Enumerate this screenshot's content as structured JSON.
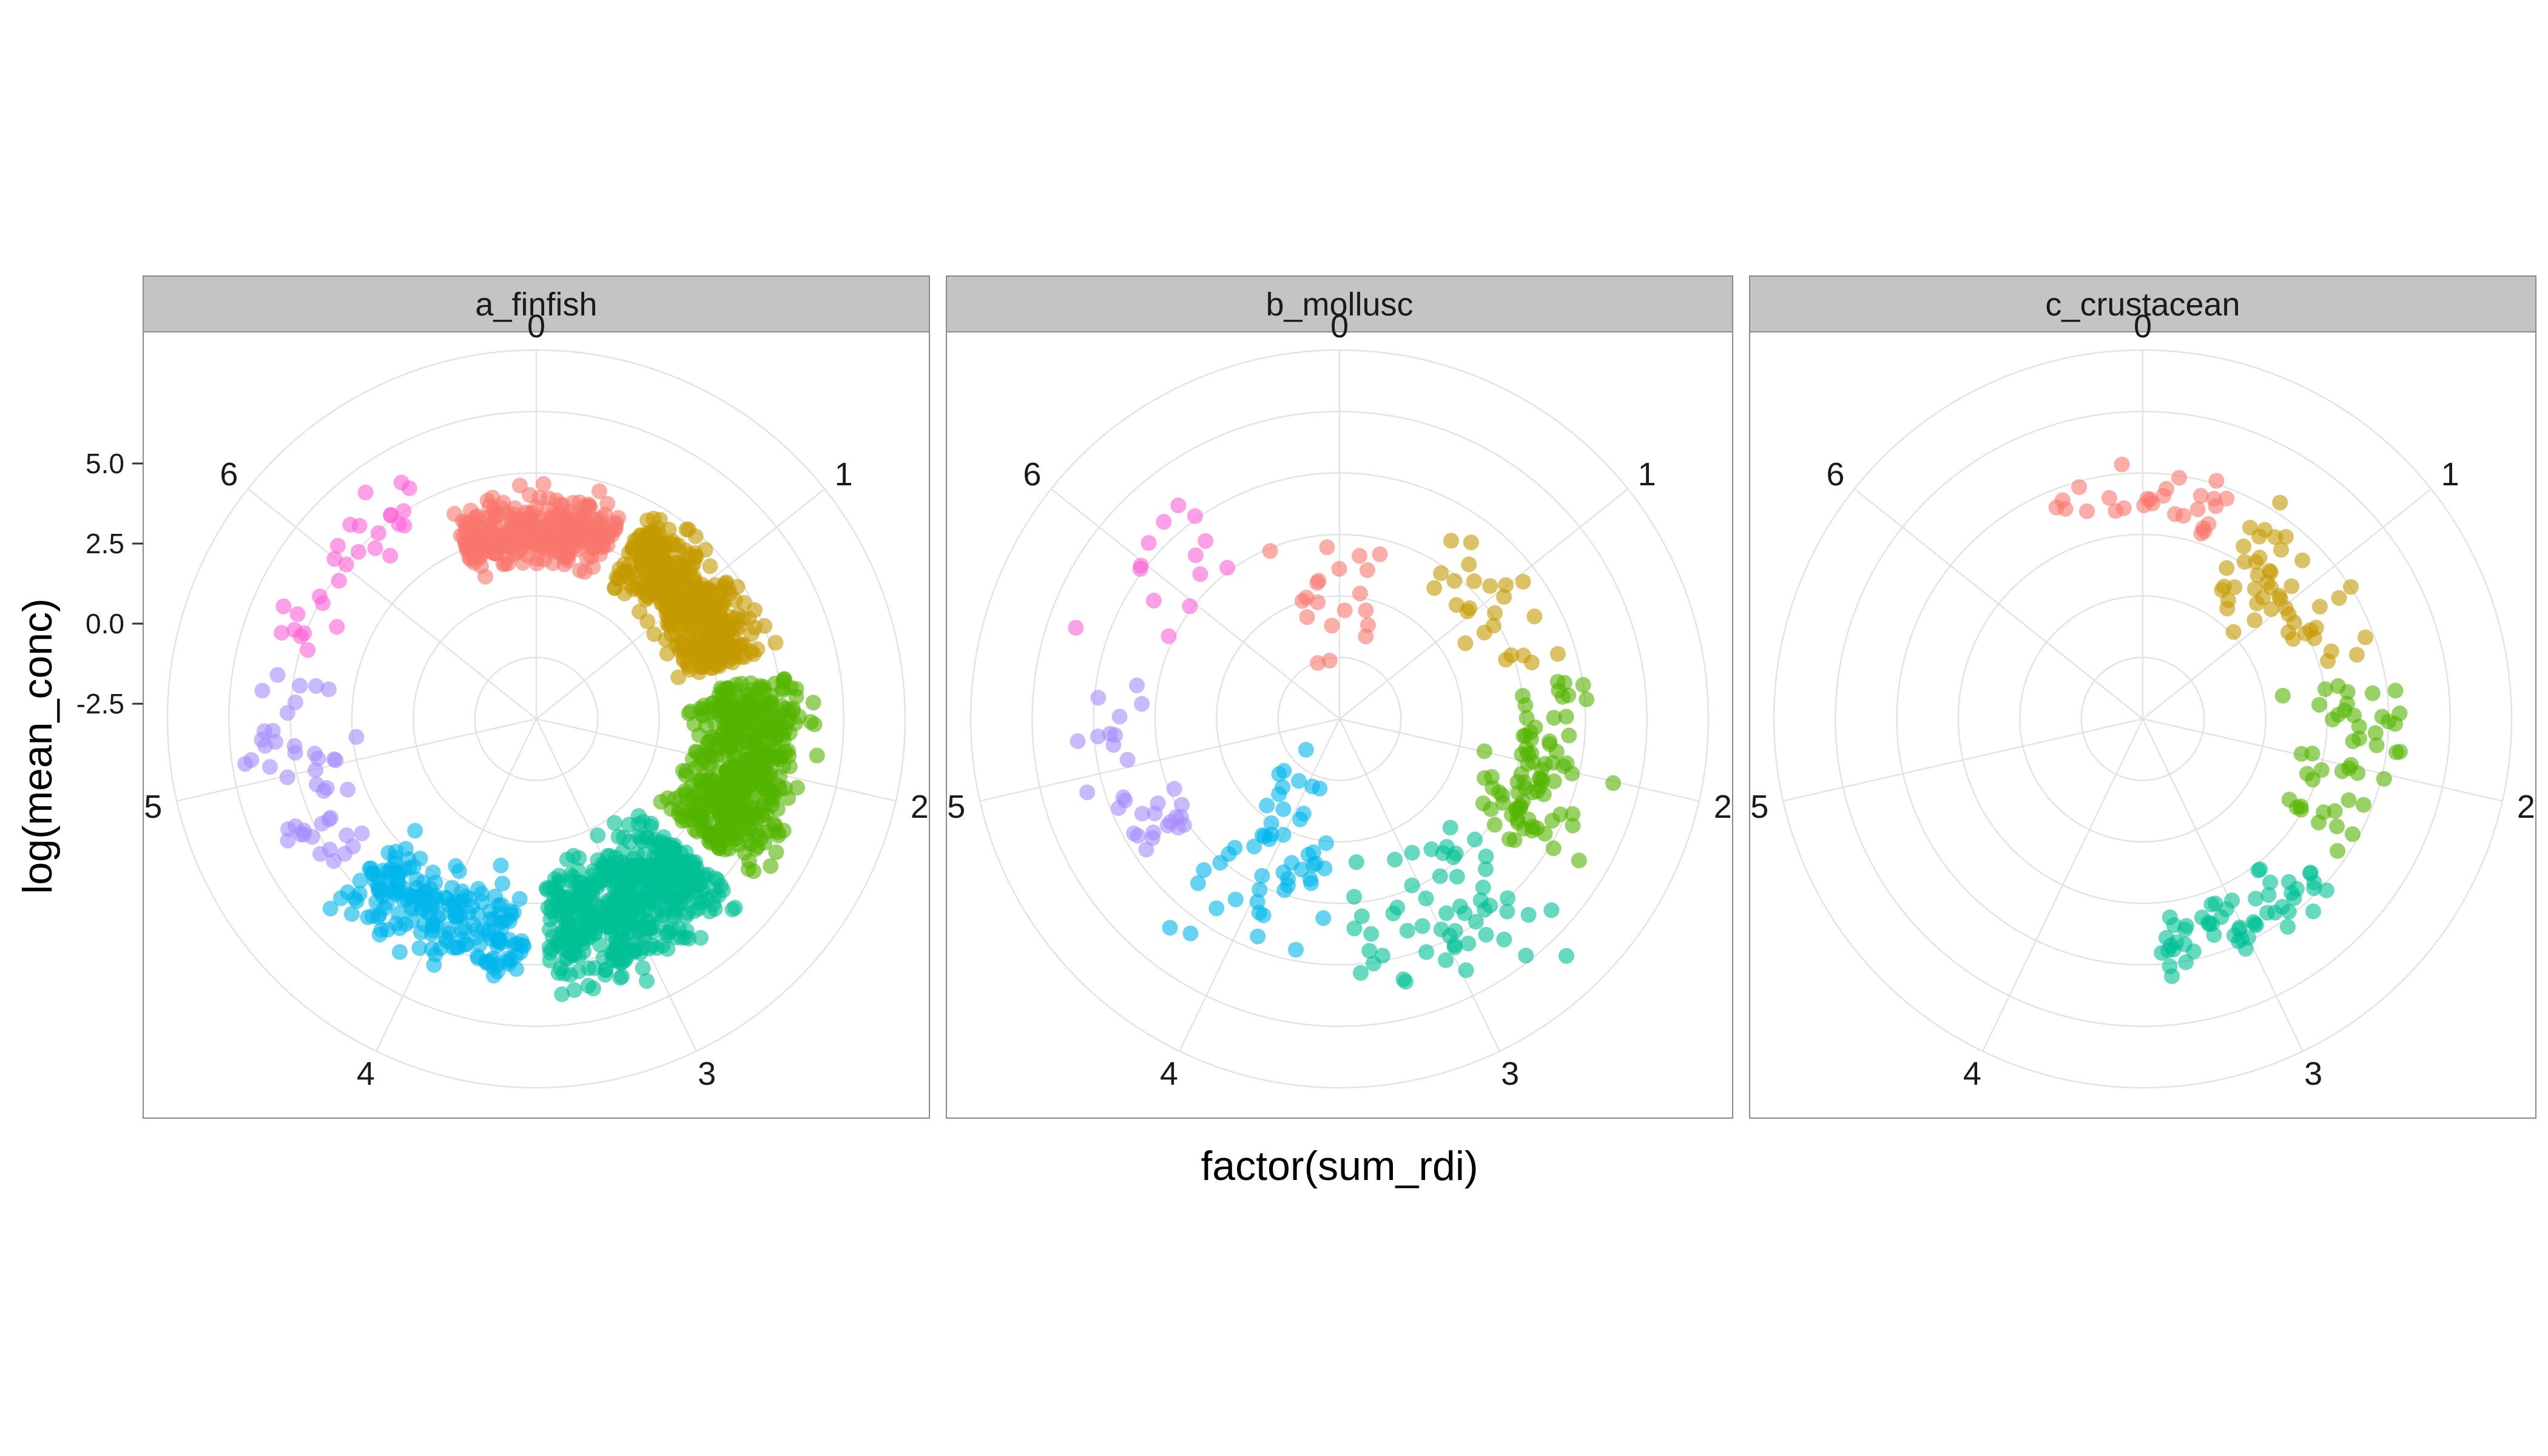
{
  "chart_data": {
    "type": "scatter",
    "coordinate_system": "polar",
    "xlabel": "factor(sum_rdi)",
    "ylabel": "log(mean_conc)",
    "x_categories": [
      "0",
      "1",
      "2",
      "3",
      "4",
      "5",
      "6"
    ],
    "y_ticks": [
      "5.0",
      "2.5",
      "0.0",
      "-2.5"
    ],
    "y_tick_values": [
      5.0,
      2.5,
      0.0,
      -2.5
    ],
    "ylim": [
      -7.5,
      7.5
    ],
    "grid": true,
    "legend": "none",
    "point_alpha": 0.6,
    "category_colors": {
      "0": "#F8766D",
      "1": "#C49A00",
      "2": "#53B400",
      "3": "#00C094",
      "4": "#00B6EB",
      "5": "#A58AFF",
      "6": "#FB61D7"
    },
    "panels": [
      {
        "strip_label": "a_finfish",
        "groups": [
          {
            "category": "0",
            "n_points": 340,
            "y_range": [
              -2.0,
              2.5
            ]
          },
          {
            "category": "1",
            "n_points": 460,
            "y_range": [
              -2.0,
              3.0
            ]
          },
          {
            "category": "2",
            "n_points": 520,
            "y_range": [
              -2.0,
              4.5
            ]
          },
          {
            "category": "3",
            "n_points": 520,
            "y_range": [
              -2.5,
              4.5
            ]
          },
          {
            "category": "4",
            "n_points": 200,
            "y_range": [
              -1.5,
              4.5
            ]
          },
          {
            "category": "5",
            "n_points": 45,
            "y_range": [
              -1.0,
              5.0
            ]
          },
          {
            "category": "6",
            "n_points": 28,
            "y_range": [
              0.5,
              4.5
            ]
          }
        ]
      },
      {
        "strip_label": "b_mollusc",
        "groups": [
          {
            "category": "0",
            "n_points": 20,
            "y_range": [
              -6.5,
              1.5
            ]
          },
          {
            "category": "1",
            "n_points": 24,
            "y_range": [
              -2.0,
              3.5
            ]
          },
          {
            "category": "2",
            "n_points": 80,
            "y_range": [
              -2.5,
              4.5
            ]
          },
          {
            "category": "3",
            "n_points": 55,
            "y_range": [
              -3.5,
              6.0
            ]
          },
          {
            "category": "4",
            "n_points": 50,
            "y_range": [
              -6.0,
              5.0
            ]
          },
          {
            "category": "5",
            "n_points": 30,
            "y_range": [
              -2.0,
              4.0
            ]
          },
          {
            "category": "6",
            "n_points": 14,
            "y_range": [
              -1.0,
              4.5
            ]
          }
        ]
      },
      {
        "strip_label": "c_crustacean",
        "groups": [
          {
            "category": "0",
            "n_points": 28,
            "y_range": [
              -0.5,
              3.5
            ]
          },
          {
            "category": "1",
            "n_points": 48,
            "y_range": [
              -3.0,
              3.5
            ]
          },
          {
            "category": "2",
            "n_points": 45,
            "y_range": [
              -2.5,
              4.5
            ]
          },
          {
            "category": "3",
            "n_points": 55,
            "y_range": [
              -0.5,
              3.5
            ]
          }
        ]
      }
    ]
  }
}
